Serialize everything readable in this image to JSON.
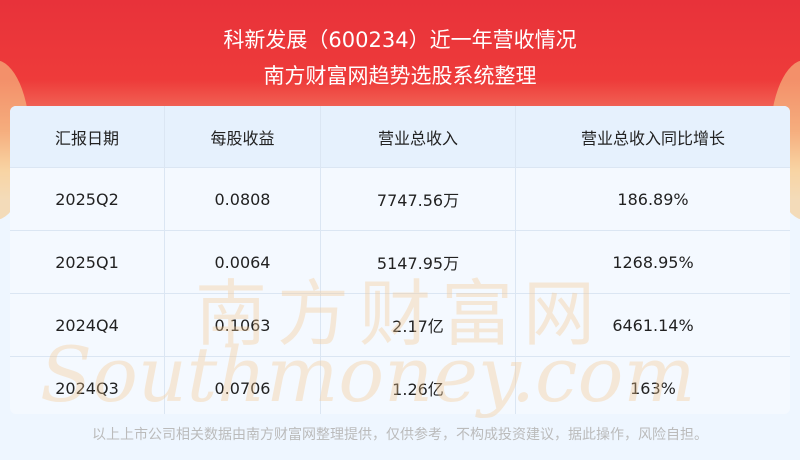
{
  "header": {
    "title": "科新发展（600234）近一年营收情况",
    "subtitle": "南方财富网趋势选股系统整理"
  },
  "table": {
    "columns": [
      "汇报日期",
      "每股收益",
      "营业总收入",
      "营业总收入同比增长"
    ],
    "rows": [
      [
        "2025Q2",
        "0.0808",
        "7747.56万",
        "186.89%"
      ],
      [
        "2025Q1",
        "0.0064",
        "5147.95万",
        "1268.95%"
      ],
      [
        "2024Q4",
        "0.1063",
        "2.17亿",
        "6461.14%"
      ],
      [
        "2024Q3",
        "0.0706",
        "1.26亿",
        "163%"
      ]
    ]
  },
  "watermark": {
    "cn": "南方财富网",
    "en": "Southmoney.com"
  },
  "footer": "以上上市公司相关数据由南方财富网整理提供，仅供参考，不构成投资建议，据此操作，风险自担。",
  "colors": {
    "banner": "#e8323a",
    "header_row": "#e6f1fd",
    "body_bg": "#eef6ff"
  }
}
